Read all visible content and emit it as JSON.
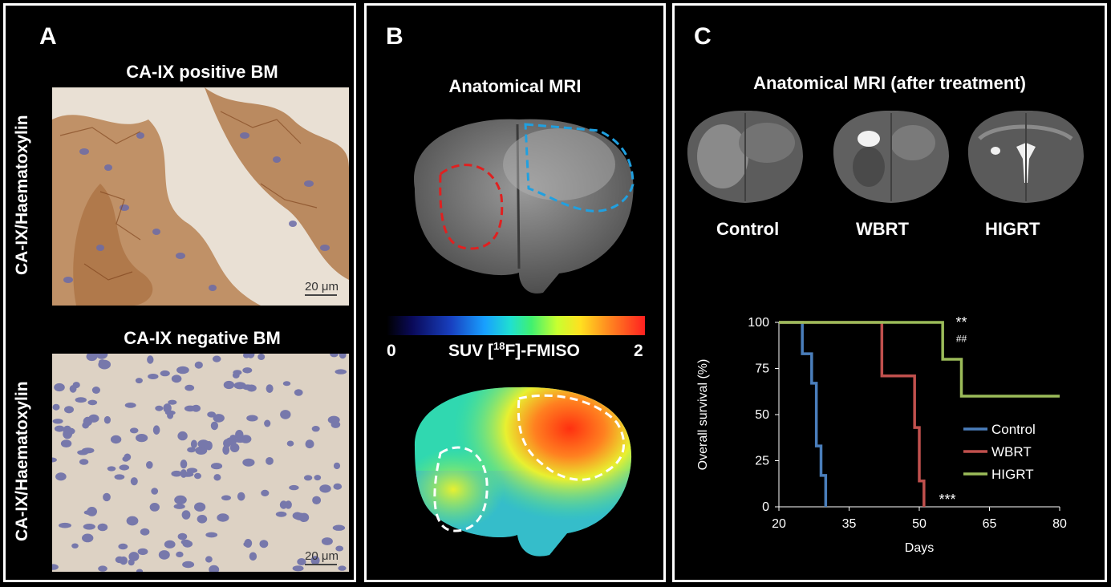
{
  "panel_a": {
    "letter": "A",
    "top_title": "CA-IX positive BM",
    "bottom_title": "CA-IX negative BM",
    "vertical_label": "CA-IX/Haematoxylin",
    "scale_label": "20 μm"
  },
  "panel_b": {
    "letter": "B",
    "title": "Anatomical MRI",
    "colorbar_min": "0",
    "colorbar_max": "2",
    "colorbar_label_pre": "SUV [",
    "colorbar_label_sup": "18",
    "colorbar_label_post": "F]-FMISO"
  },
  "panel_c": {
    "letter": "C",
    "title": "Anatomical MRI (after treatment)",
    "mri_labels": [
      "Control",
      "WBRT",
      "HIGRT"
    ]
  },
  "chart_data": {
    "type": "line",
    "step": true,
    "xlabel": "Days",
    "ylabel": "Overall survival (%)",
    "xlim": [
      20,
      80
    ],
    "ylim": [
      0,
      100
    ],
    "xticks": [
      20,
      35,
      50,
      65,
      80
    ],
    "yticks": [
      0,
      25,
      50,
      75,
      100
    ],
    "legend_position": "right",
    "series": [
      {
        "name": "Control",
        "color": "#4a7ebb",
        "x": [
          20,
          25,
          27,
          28,
          29,
          30
        ],
        "y": [
          100,
          83,
          67,
          33,
          17,
          0
        ]
      },
      {
        "name": "WBRT",
        "color": "#c0504d",
        "x": [
          20,
          42,
          49,
          50,
          51
        ],
        "y": [
          100,
          71,
          43,
          14,
          0
        ]
      },
      {
        "name": "HIGRT",
        "color": "#9bbb59",
        "x": [
          20,
          55,
          59,
          80
        ],
        "y": [
          100,
          80,
          60,
          60
        ]
      }
    ],
    "annotations": [
      {
        "text": "**",
        "x": 59,
        "y": 100
      },
      {
        "text": "##",
        "x": 59,
        "y": 92
      },
      {
        "text": "***",
        "x": 56,
        "y": 4
      }
    ]
  }
}
